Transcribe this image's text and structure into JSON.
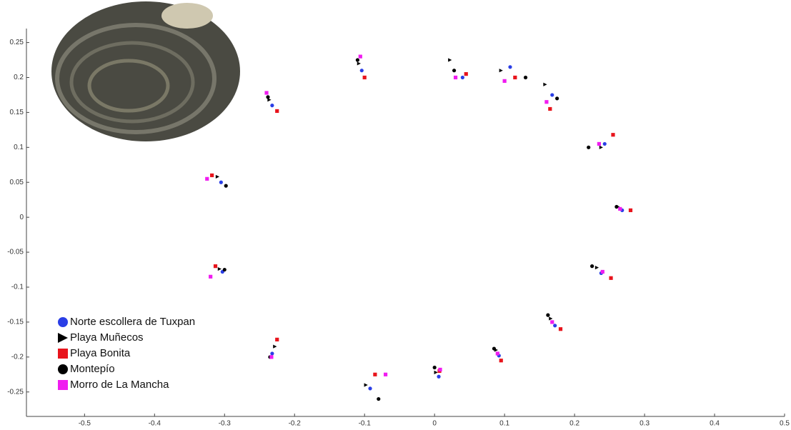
{
  "chart_data": {
    "type": "scatter",
    "xlim": [
      -0.583,
      0.5
    ],
    "ylim": [
      -0.285,
      0.27
    ],
    "xticks": [
      -0.5,
      -0.4,
      -0.3,
      -0.2,
      -0.1,
      0,
      0.1,
      0.2,
      0.3,
      0.4,
      0.5
    ],
    "yticks": [
      -0.25,
      -0.2,
      -0.15,
      -0.1,
      -0.05,
      0,
      0.05,
      0.1,
      0.15,
      0.2,
      0.25
    ],
    "legend": "lower left",
    "series": [
      {
        "name": "Norte escollera de Tuxpan",
        "color": "#2a3ee6",
        "marker": "circle",
        "x": [
          -0.104,
          -0.232,
          -0.305,
          -0.303,
          -0.232,
          -0.092,
          0.006,
          0.092,
          0.172,
          0.238,
          0.268,
          0.243,
          0.168,
          0.108,
          0.04
        ],
        "y": [
          0.21,
          0.16,
          0.05,
          -0.078,
          -0.195,
          -0.245,
          -0.228,
          -0.198,
          -0.155,
          -0.08,
          0.01,
          0.105,
          0.175,
          0.215,
          0.2
        ]
      },
      {
        "name": "Playa Muñecos",
        "color": "#000000",
        "marker": "triangle",
        "x": [
          -0.108,
          -0.236,
          -0.31,
          -0.307,
          -0.228,
          -0.098,
          0.002,
          0.088,
          0.166,
          0.232,
          0.262,
          0.238,
          0.158,
          0.095,
          0.022
        ],
        "y": [
          0.22,
          0.168,
          0.058,
          -0.074,
          -0.185,
          -0.24,
          -0.222,
          -0.19,
          -0.145,
          -0.072,
          0.015,
          0.1,
          0.19,
          0.21,
          0.225
        ]
      },
      {
        "name": "Playa Bonita",
        "color": "#e8141c",
        "marker": "square",
        "x": [
          -0.1,
          -0.225,
          -0.318,
          -0.313,
          -0.225,
          -0.085,
          0.007,
          0.095,
          0.18,
          0.252,
          0.28,
          0.255,
          0.165,
          0.115,
          0.045
        ],
        "y": [
          0.2,
          0.152,
          0.06,
          -0.07,
          -0.175,
          -0.225,
          -0.22,
          -0.205,
          -0.16,
          -0.087,
          0.01,
          0.118,
          0.155,
          0.2,
          0.205
        ]
      },
      {
        "name": "Montepío",
        "color": "#000000",
        "marker": "circle",
        "x": [
          -0.11,
          -0.238,
          -0.298,
          -0.3,
          -0.235,
          -0.08,
          0,
          0.085,
          0.162,
          0.225,
          0.26,
          0.22,
          0.175,
          0.13,
          0.028
        ],
        "y": [
          0.225,
          0.172,
          0.045,
          -0.075,
          -0.2,
          -0.26,
          -0.215,
          -0.188,
          -0.14,
          -0.07,
          0.015,
          0.1,
          0.17,
          0.2,
          0.21
        ]
      },
      {
        "name": "Morro de La Mancha",
        "color": "#f01cf0",
        "marker": "square",
        "x": [
          -0.106,
          -0.24,
          -0.325,
          -0.32,
          -0.233,
          -0.07,
          0.008,
          0.09,
          0.168,
          0.24,
          0.265,
          0.235,
          0.16,
          0.1,
          0.03
        ],
        "y": [
          0.23,
          0.178,
          0.055,
          -0.085,
          -0.2,
          -0.225,
          -0.218,
          -0.195,
          -0.15,
          -0.078,
          0.012,
          0.105,
          0.165,
          0.195,
          0.2
        ]
      }
    ]
  }
}
